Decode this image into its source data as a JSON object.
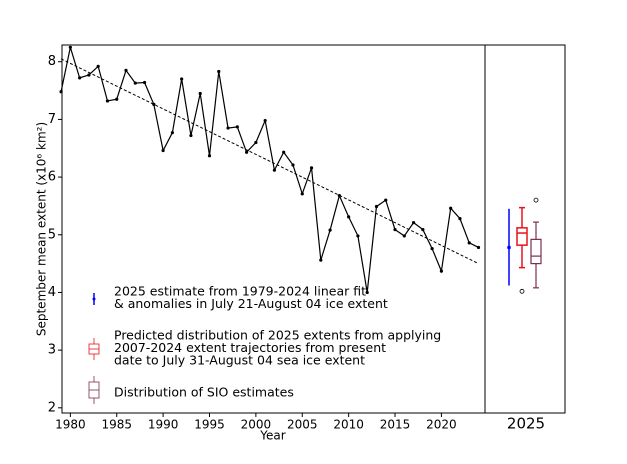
{
  "chart_data": {
    "type": "line",
    "ylabel": "September mean extent (x10⁶ km²)",
    "xlabel": "Year",
    "xlim": [
      1979.1,
      2024.7
    ],
    "ylim": [
      1.91,
      8.29
    ],
    "xticks": [
      1980,
      1985,
      1990,
      1995,
      2000,
      2005,
      2010,
      2015,
      2020
    ],
    "yticks": [
      2,
      3,
      4,
      5,
      6,
      7,
      8
    ],
    "series": [
      {
        "name": "Observed",
        "color": "#000000",
        "x": [
          1979,
          1980,
          1981,
          1982,
          1983,
          1984,
          1985,
          1986,
          1987,
          1988,
          1989,
          1990,
          1991,
          1992,
          1993,
          1994,
          1995,
          1996,
          1997,
          1998,
          1999,
          2000,
          2001,
          2002,
          2003,
          2004,
          2005,
          2006,
          2007,
          2008,
          2009,
          2010,
          2011,
          2012,
          2013,
          2014,
          2015,
          2016,
          2017,
          2018,
          2019,
          2020,
          2021,
          2022,
          2023,
          2024
        ],
        "values": [
          7.48,
          8.25,
          7.72,
          7.77,
          7.92,
          7.32,
          7.35,
          7.85,
          7.63,
          7.64,
          7.26,
          6.46,
          6.77,
          7.7,
          6.72,
          7.45,
          6.37,
          7.83,
          6.85,
          6.87,
          6.43,
          6.6,
          6.98,
          6.12,
          6.43,
          6.21,
          5.71,
          6.16,
          4.56,
          5.08,
          5.68,
          5.31,
          4.98,
          4.0,
          5.49,
          5.6,
          5.09,
          4.98,
          5.21,
          5.09,
          4.76,
          4.37,
          5.46,
          5.28,
          4.86,
          4.78
        ]
      },
      {
        "name": "Linear trend",
        "color": "#000000",
        "dashed": true,
        "x": [
          1979,
          2024
        ],
        "values": [
          8.05,
          4.5
        ]
      }
    ],
    "panel": {
      "label": "2025",
      "estimate": {
        "name": [
          "2025 estimate from 1979-2024 linear fit",
          "& anomalies in July 21-August 04 ice extent"
        ],
        "color": "#0000ff",
        "value": 4.78,
        "range": [
          4.12,
          5.45
        ]
      },
      "boxes": [
        {
          "name": [
            "Predicted distribution of 2025 extents from applying",
            "2007-2024 extent trajectories from present",
            "date to July 31-August 04 sea ice extent"
          ],
          "color": "#e8121c",
          "whisker_low": 4.43,
          "q1": 4.82,
          "median": 5.03,
          "q3": 5.12,
          "whisker_high": 5.47,
          "outliers": [
            4.02
          ]
        },
        {
          "name": [
            "Distribution of SIO estimates"
          ],
          "color": "#7b2e4f",
          "whisker_low": 4.08,
          "q1": 4.5,
          "median": 4.63,
          "q3": 4.92,
          "whisker_high": 5.22,
          "outliers": [
            5.6
          ]
        }
      ]
    }
  }
}
